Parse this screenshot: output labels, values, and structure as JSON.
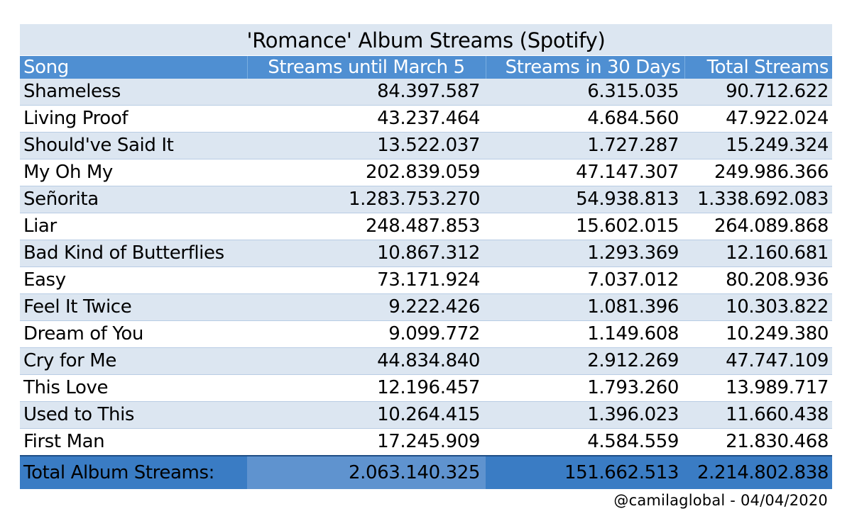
{
  "chart_data": {
    "type": "table",
    "title": "'Romance' Album Streams (Spotify)",
    "columns": [
      "Song",
      "Streams until March 5",
      "Streams in 30 Days",
      "Total Streams"
    ],
    "rows": [
      [
        "Shameless",
        "84.397.587",
        "6.315.035",
        "90.712.622"
      ],
      [
        "Living Proof",
        "43.237.464",
        "4.684.560",
        "47.922.024"
      ],
      [
        "Should've Said It",
        "13.522.037",
        "1.727.287",
        "15.249.324"
      ],
      [
        "My Oh My",
        "202.839.059",
        "47.147.307",
        "249.986.366"
      ],
      [
        "Señorita",
        "1.283.753.270",
        "54.938.813",
        "1.338.692.083"
      ],
      [
        "Liar",
        "248.487.853",
        "15.602.015",
        "264.089.868"
      ],
      [
        "Bad Kind of Butterflies",
        "10.867.312",
        "1.293.369",
        "12.160.681"
      ],
      [
        "Easy",
        "73.171.924",
        "7.037.012",
        "80.208.936"
      ],
      [
        "Feel It Twice",
        "9.222.426",
        "1.081.396",
        "10.303.822"
      ],
      [
        "Dream of You",
        "9.099.772",
        "1.149.608",
        "10.249.380"
      ],
      [
        "Cry for Me",
        "44.834.840",
        "2.912.269",
        "47.747.109"
      ],
      [
        "This Love",
        "12.196.457",
        "1.793.260",
        "13.989.717"
      ],
      [
        "Used to This",
        "10.264.415",
        "1.396.023",
        "11.660.438"
      ],
      [
        "First Man",
        "17.245.909",
        "4.584.559",
        "21.830.468"
      ]
    ],
    "total": {
      "label": "Total Album Streams:",
      "values": [
        "2.063.140.325",
        "151.662.513",
        "2.214.802.838"
      ]
    }
  },
  "credit": "@camilaglobal  -  04/04/2020",
  "colors": {
    "header": "#4f8fd2",
    "band": "#dce6f1",
    "total": "#3a7cc4"
  }
}
